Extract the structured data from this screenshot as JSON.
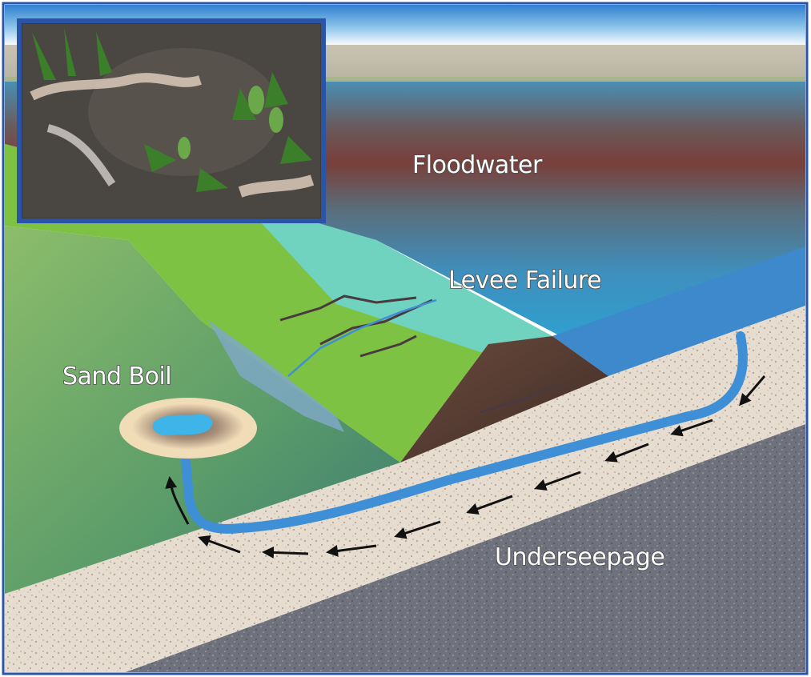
{
  "labels": {
    "floodwater": "Floodwater",
    "levee_failure": "Levee Failure",
    "sand_boil": "Sand Boil",
    "underseepage": "Underseepage"
  },
  "colors": {
    "frame_border": "#2a54a8",
    "sky_top": "#5aa7dd",
    "floodwater_red": "#7a3f3a",
    "floodwater_blue": "#3f8fbd",
    "levee_green": "#7dc242",
    "land_side_green": "#5a9b6a",
    "seepage_blue": "#3f8fd6",
    "sand_layer": "#e3d9cc",
    "bedrock": "#6d6f7a",
    "levee_core_brown": "#5a3e33"
  },
  "icons": {
    "inset_photo": "sand-boil-photo",
    "flow_arrows": "seepage-direction-arrow"
  }
}
